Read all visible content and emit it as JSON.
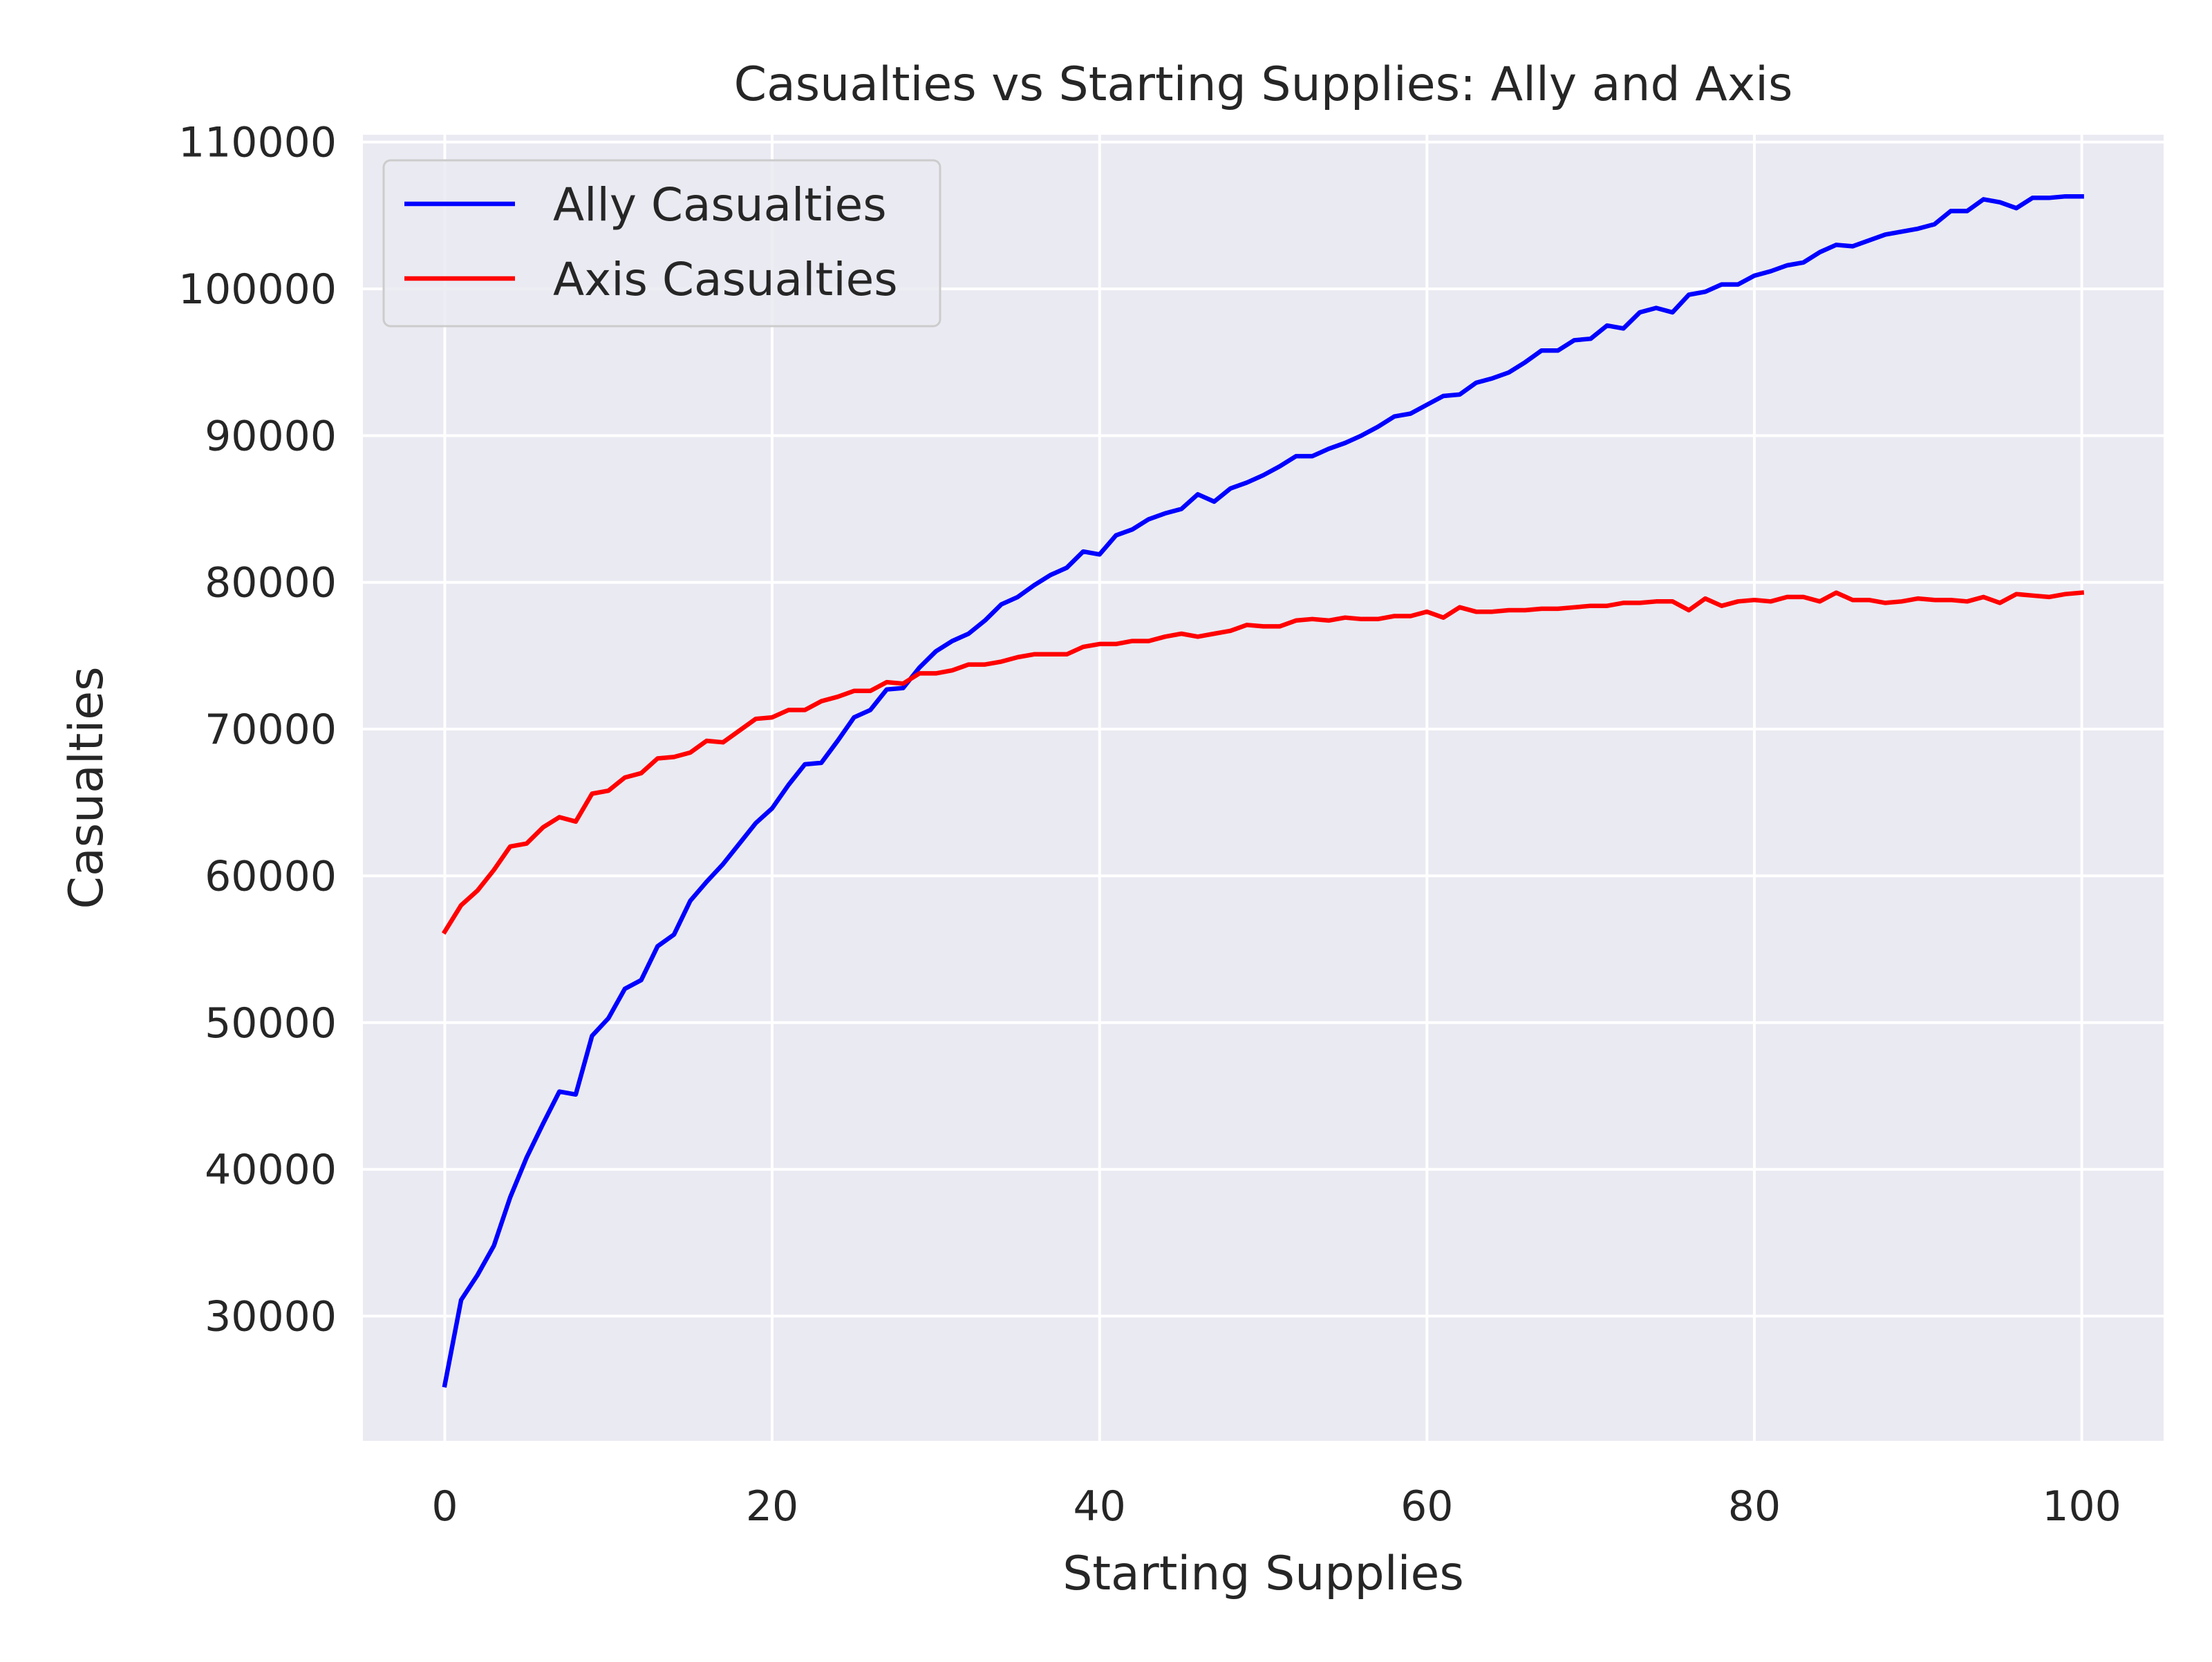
{
  "chart_data": {
    "type": "line",
    "title": "Casualties vs Starting Supplies: Ally and Axis",
    "xlabel": "Starting Supplies",
    "ylabel": "Casualties",
    "xlim": [
      -5,
      105
    ],
    "ylim": [
      21500,
      110500
    ],
    "xticks": [
      0,
      20,
      40,
      60,
      80,
      100
    ],
    "yticks": [
      30000,
      40000,
      50000,
      60000,
      70000,
      80000,
      90000,
      100000,
      110000
    ],
    "grid": true,
    "legend_position": "top-left",
    "background": "#eaeaf2",
    "x": [
      0,
      1,
      2,
      3,
      4,
      5,
      6,
      7,
      8,
      9,
      10,
      11,
      12,
      13,
      14,
      15,
      16,
      17,
      18,
      19,
      20,
      21,
      22,
      23,
      24,
      25,
      26,
      27,
      28,
      29,
      30,
      31,
      32,
      33,
      34,
      35,
      36,
      37,
      38,
      39,
      40,
      41,
      42,
      43,
      44,
      45,
      46,
      47,
      48,
      49,
      50,
      51,
      52,
      53,
      54,
      55,
      56,
      57,
      58,
      59,
      60,
      61,
      62,
      63,
      64,
      65,
      66,
      67,
      68,
      69,
      70,
      71,
      72,
      73,
      74,
      75,
      76,
      77,
      78,
      79,
      80,
      81,
      82,
      83,
      84,
      85,
      86,
      87,
      88,
      89,
      90,
      91,
      92,
      93,
      94,
      95,
      96,
      97,
      98,
      99,
      100
    ],
    "series": [
      {
        "name": "Ally Casualties",
        "color": "#0000ff",
        "values": [
          25300,
          31100,
          32800,
          34800,
          38100,
          40800,
          43100,
          45300,
          45100,
          49100,
          50300,
          52300,
          52900,
          55200,
          56000,
          58300,
          59600,
          60800,
          62200,
          63600,
          64600,
          66200,
          67600,
          67700,
          69200,
          70800,
          71300,
          72700,
          72800,
          74200,
          75300,
          76000,
          76500,
          77400,
          78500,
          79000,
          79800,
          80500,
          81000,
          82100,
          81900,
          83200,
          83600,
          84300,
          84700,
          85000,
          86000,
          85500,
          86400,
          86800,
          87300,
          87900,
          88600,
          88600,
          89100,
          89500,
          90000,
          90600,
          91300,
          91500,
          92100,
          92700,
          92800,
          93600,
          93900,
          94300,
          95000,
          95800,
          95800,
          96500,
          96600,
          97500,
          97300,
          98400,
          98700,
          98400,
          99600,
          99800,
          100300,
          100300,
          100900,
          101200,
          101600,
          101800,
          102500,
          103000,
          102900,
          103300,
          103700,
          103900,
          104100,
          104400,
          105300,
          105300,
          106100,
          105900,
          105500,
          106200,
          106200,
          106300,
          106300
        ]
      },
      {
        "name": "Axis Casualties",
        "color": "#ff0000",
        "values": [
          56200,
          58000,
          59000,
          60400,
          62000,
          62200,
          63300,
          64000,
          63700,
          65600,
          65800,
          66700,
          67000,
          68000,
          68100,
          68400,
          69200,
          69100,
          69900,
          70700,
          70800,
          71300,
          71300,
          71900,
          72200,
          72600,
          72600,
          73200,
          73100,
          73800,
          73800,
          74000,
          74400,
          74400,
          74600,
          74900,
          75100,
          75100,
          75100,
          75600,
          75800,
          75800,
          76000,
          76000,
          76300,
          76500,
          76300,
          76500,
          76700,
          77100,
          77000,
          77000,
          77400,
          77500,
          77400,
          77600,
          77500,
          77500,
          77700,
          77700,
          78000,
          77600,
          78300,
          78000,
          78000,
          78100,
          78100,
          78200,
          78200,
          78300,
          78400,
          78400,
          78600,
          78600,
          78700,
          78700,
          78100,
          78900,
          78400,
          78700,
          78800,
          78700,
          79000,
          79000,
          78700,
          79300,
          78800,
          78800,
          78600,
          78700,
          78900,
          78800,
          78800,
          78700,
          79000,
          78600,
          79200,
          79100,
          79000,
          79200,
          79300
        ]
      }
    ]
  }
}
